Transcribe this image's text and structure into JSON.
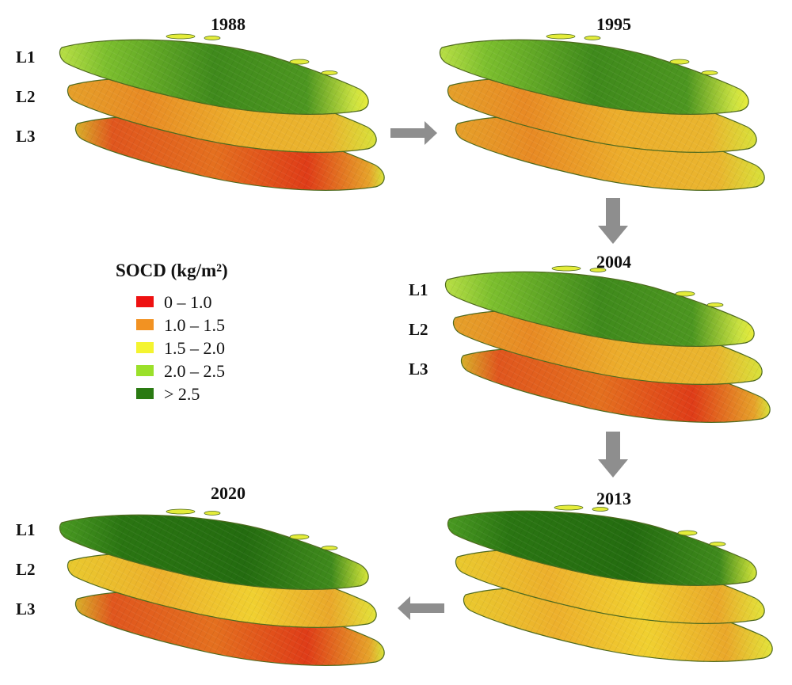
{
  "panels": [
    {
      "id": "p1988",
      "year": "1988",
      "labels": [
        "L1",
        "L2",
        "L3"
      ],
      "layers": [
        "green",
        "orange",
        "red"
      ]
    },
    {
      "id": "p1995",
      "year": "1995",
      "labels": [],
      "layers": [
        "green",
        "orange",
        "orange"
      ]
    },
    {
      "id": "p2004",
      "year": "2004",
      "labels": [
        "L1",
        "L2",
        "L3"
      ],
      "layers": [
        "green",
        "orange",
        "red"
      ]
    },
    {
      "id": "p2013",
      "year": "2013",
      "labels": [],
      "layers": [
        "darkgreen",
        "yellow",
        "yellow"
      ]
    },
    {
      "id": "p2020",
      "year": "2020",
      "labels": [
        "L1",
        "L2",
        "L3"
      ],
      "layers": [
        "darkgreen",
        "yellow",
        "red"
      ]
    }
  ],
  "legend": {
    "title": "SOCD (kg/m²)",
    "items": [
      {
        "label": "0 – 1.0",
        "color": "#ee1111"
      },
      {
        "label": "1.0 – 1.5",
        "color": "#f29222"
      },
      {
        "label": "1.5 – 2.0",
        "color": "#f4f430"
      },
      {
        "label": "2.0 – 2.5",
        "color": "#9be02a"
      },
      {
        "label": "> 2.5",
        "color": "#2a7a12"
      }
    ]
  },
  "arrows": [
    {
      "id": "arrow-1988-1995",
      "direction": "right"
    },
    {
      "id": "arrow-1995-2004",
      "direction": "down"
    },
    {
      "id": "arrow-2004-2013",
      "direction": "down"
    },
    {
      "id": "arrow-2013-2020",
      "direction": "left"
    }
  ],
  "colors": {
    "arrow": "#8e8e8e",
    "outline": "#4f6a1e"
  }
}
